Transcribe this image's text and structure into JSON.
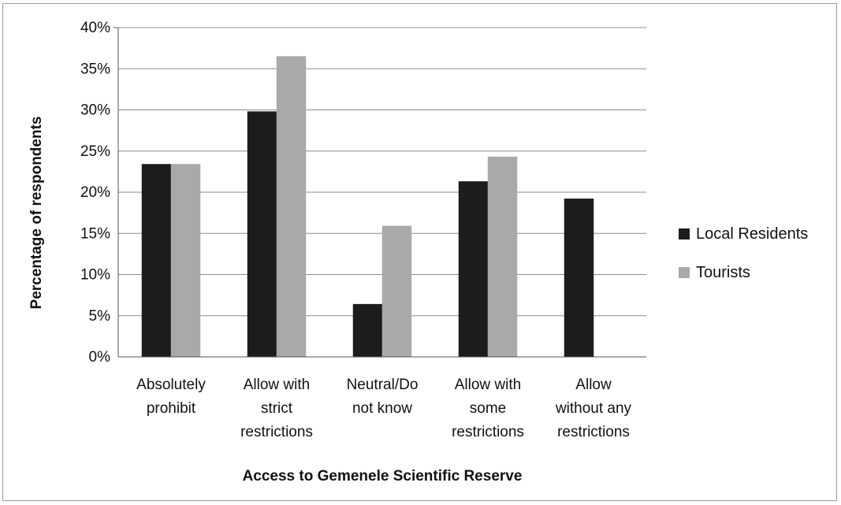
{
  "chart_data": {
    "type": "bar",
    "title": "",
    "xlabel": "Access to Gemenele Scientific Reserve",
    "ylabel": "Percentage of respondents",
    "categories": [
      [
        "Absolutely",
        "prohibit"
      ],
      [
        "Allow with",
        "strict",
        "restrictions"
      ],
      [
        "Neutral/Do",
        "not know"
      ],
      [
        "Allow with",
        "some",
        "restrictions"
      ],
      [
        "Allow",
        "without any",
        "restrictions"
      ]
    ],
    "series": [
      {
        "name": "Local Residents",
        "color": "#1c1c1c",
        "values": [
          23.4,
          29.8,
          6.4,
          21.3,
          19.2
        ]
      },
      {
        "name": "Tourists",
        "color": "#a9a9a9",
        "values": [
          23.4,
          36.5,
          15.9,
          24.3,
          null
        ]
      }
    ],
    "ylim": [
      0,
      40
    ],
    "yticks": [
      0,
      5,
      10,
      15,
      20,
      25,
      30,
      35,
      40
    ],
    "ytick_labels": [
      "0%",
      "5%",
      "10%",
      "15%",
      "20%",
      "25%",
      "30%",
      "35%",
      "40%"
    ],
    "grid": true,
    "legend_position": "right"
  }
}
